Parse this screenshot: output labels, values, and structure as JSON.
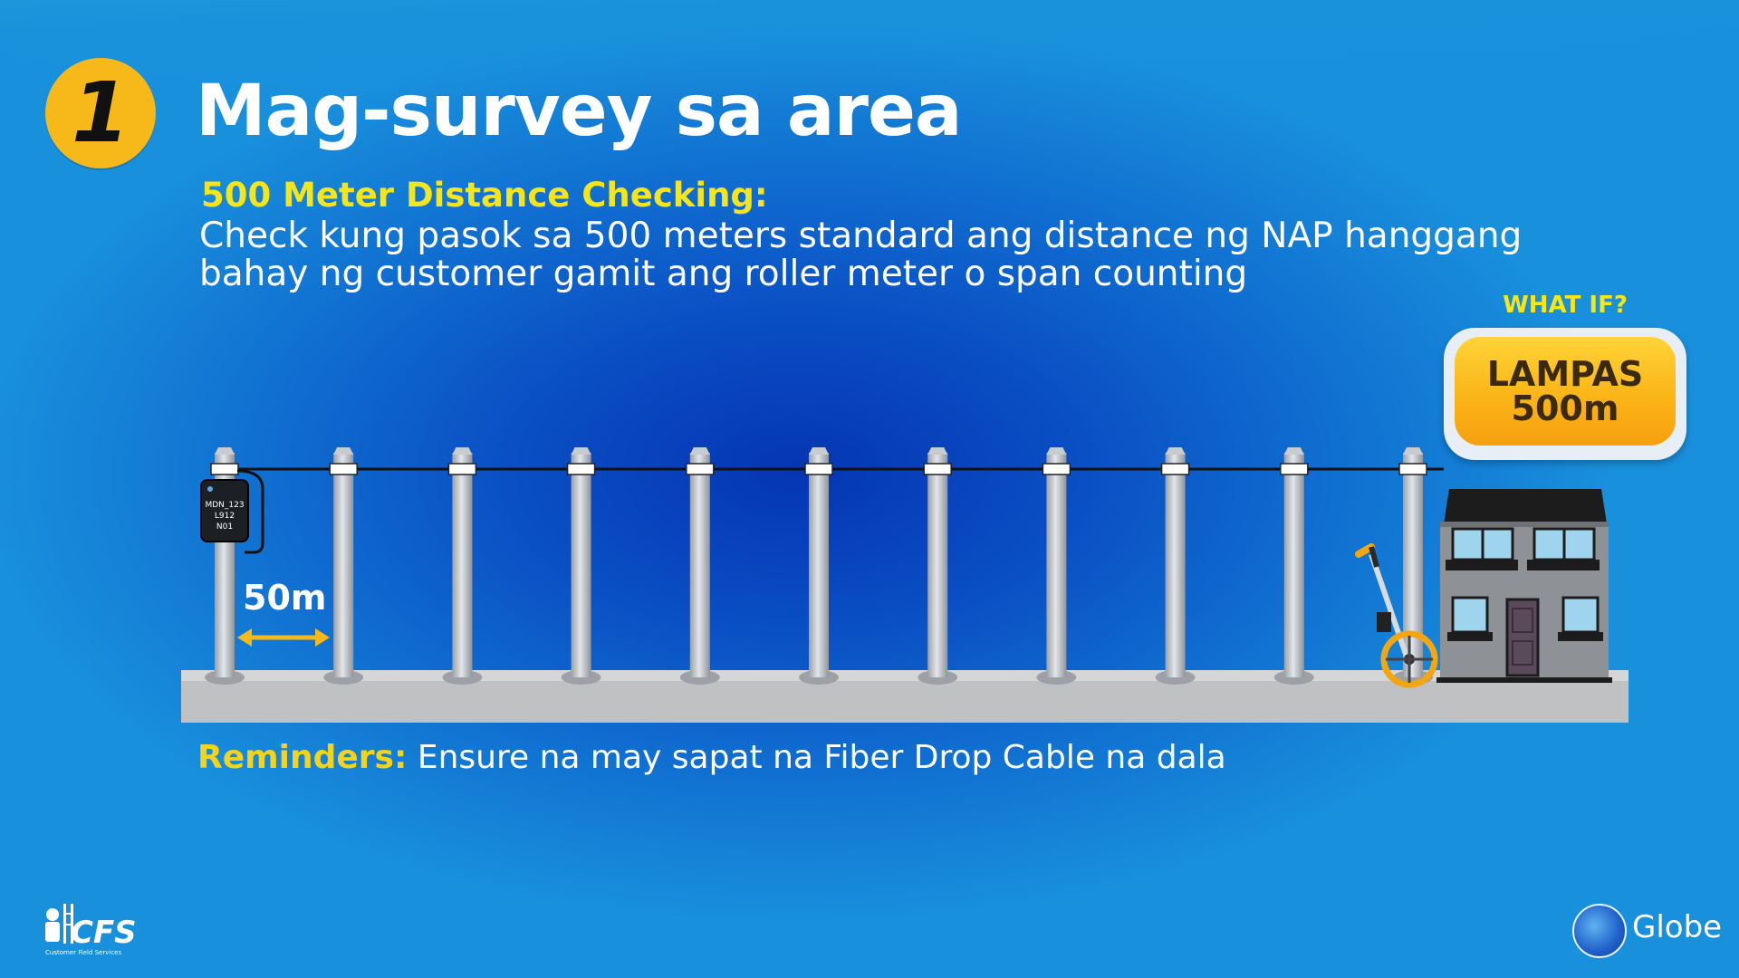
{
  "slide": {
    "step_number": "1",
    "title": "Mag-survey sa area",
    "subtitle": "500 Meter Distance Checking:",
    "description": "Check kung pasok sa 500 meters standard ang distance ng NAP hanggang bahay ng customer gamit ang roller meter o span counting",
    "what_if_label": "WHAT IF?",
    "what_if_value": "LAMPAS\n500m",
    "span_label": "50m",
    "nap_box_label": [
      "MDN_123",
      "L912",
      "N01"
    ],
    "reminder_label": "Reminders:",
    "reminder_text": "Ensure na may sapat na Fiber Drop Cable na dala",
    "footer_left_logo": "CFS",
    "footer_left_subtitle": "Customer Field Services",
    "footer_right_logo": "Globe"
  },
  "colors": {
    "accent_yellow": "#f5e61b",
    "badge_orange": "#f7b91a",
    "background_blue": "#0a4fc4"
  }
}
